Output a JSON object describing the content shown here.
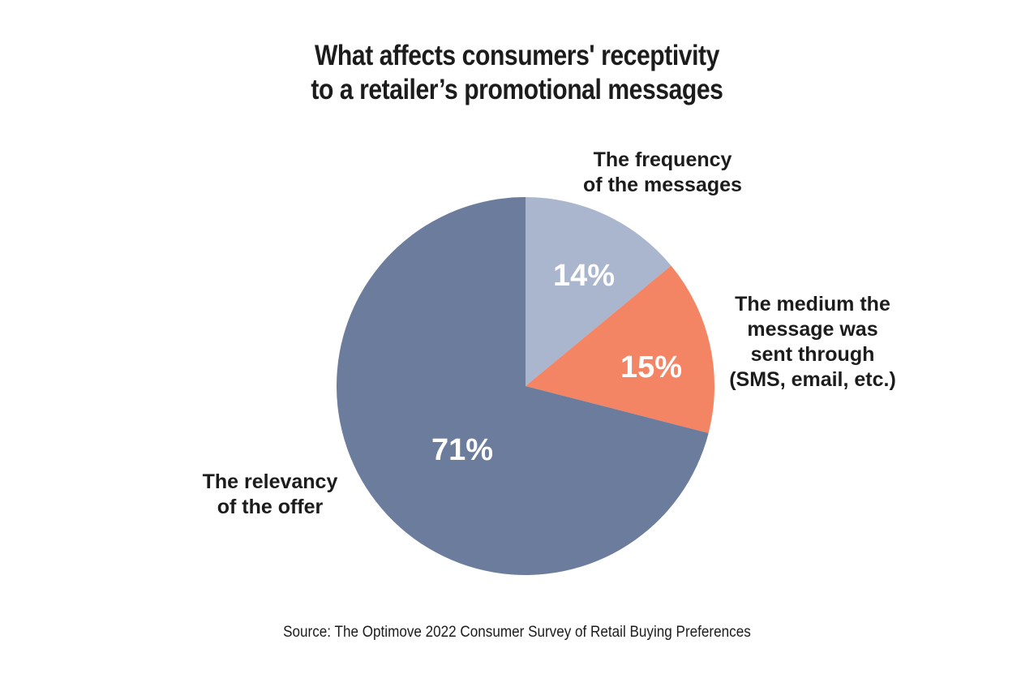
{
  "chart_data": {
    "type": "pie",
    "title": [
      "What affects consumers' receptivity",
      "to a retailer’s promotional messages"
    ],
    "slices": [
      {
        "name": "The frequency of the messages",
        "label_lines": [
          "The frequency",
          "of the messages"
        ],
        "value": 14,
        "value_label": "14%",
        "color": "#a9b6cd"
      },
      {
        "name": "The medium the message was sent through (SMS, email, etc.)",
        "label_lines": [
          "The medium the",
          "message was",
          "sent through",
          "(SMS, email, etc.)"
        ],
        "value": 15,
        "value_label": "15%",
        "color": "#f38464"
      },
      {
        "name": "The relevancy of the offer",
        "label_lines": [
          "The relevancy",
          "of the offer"
        ],
        "value": 71,
        "value_label": "71%",
        "color": "#6c7c9c"
      }
    ],
    "start_angle": "12 o'clock",
    "direction": "clockwise",
    "legend": "none",
    "source": "Source: The Optimove 2022 Consumer Survey of Retail Buying Preferences"
  }
}
